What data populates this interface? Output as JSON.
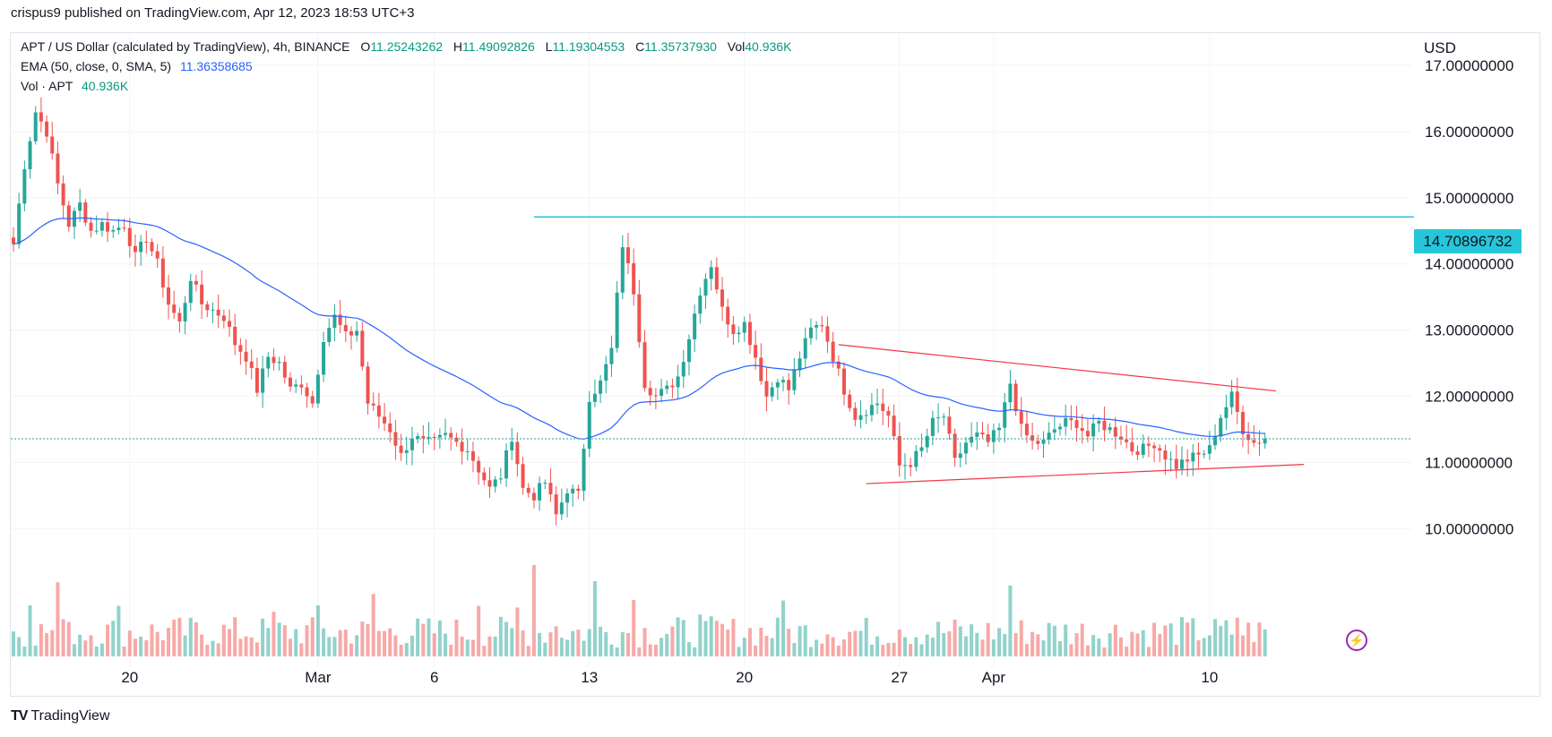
{
  "header": {
    "publisher": "crispus9 published on TradingView.com, Apr 12, 2023 18:53 UTC+3"
  },
  "legend": {
    "symbol": "APT / US Dollar (calculated by TradingView), 4h, BINANCE",
    "open_key": "O",
    "open": "11.25243262",
    "high_key": "H",
    "high": "11.49092826",
    "low_key": "L",
    "low": "11.19304553",
    "close_key": "C",
    "close": "11.35737930",
    "vol_key": "Vol",
    "vol": "40.936K",
    "ema_label": "EMA (50, close, 0, SMA, 5)",
    "ema_value": "11.36358685",
    "vol_label": "Vol · APT",
    "vol_value": "40.936K"
  },
  "currency": "USD",
  "resistance_label": "14.70896732",
  "footer": {
    "brand": "TradingView"
  },
  "colors": {
    "up": "#26a69a",
    "down": "#ef5350",
    "ema": "#2962ff",
    "level": "#26c6da",
    "trend": "#f23645"
  },
  "chart_data": {
    "type": "candlestick",
    "symbol": "APT/USD",
    "interval": "4h",
    "y_axis": {
      "min": 9.3,
      "max": 17.4,
      "ticks": [
        10,
        11,
        12,
        13,
        14,
        15,
        16,
        17
      ],
      "tick_labels": [
        "10.00000000",
        "11.00000000",
        "12.00000000",
        "13.00000000",
        "14.00000000",
        "15.00000000",
        "16.00000000",
        "17.00000000"
      ]
    },
    "x_axis": {
      "ticks": [
        {
          "label": "20",
          "bar": 21
        },
        {
          "label": "Mar",
          "bar": 55
        },
        {
          "label": "6",
          "bar": 76
        },
        {
          "label": "13",
          "bar": 104
        },
        {
          "label": "20",
          "bar": 132
        },
        {
          "label": "27",
          "bar": 160
        },
        {
          "label": "Apr",
          "bar": 177
        },
        {
          "label": "10",
          "bar": 216
        }
      ]
    },
    "last_close": 11.357,
    "horizontal_level": {
      "value": 14.709,
      "from_bar": 94
    },
    "trendlines": [
      {
        "from": {
          "bar": 149,
          "value": 12.78
        },
        "to": {
          "bar": 228,
          "value": 12.08
        }
      },
      {
        "from": {
          "bar": 154,
          "value": 10.68
        },
        "to": {
          "bar": 233,
          "value": 10.97
        }
      }
    ],
    "anchors": [
      [
        0,
        14.3
      ],
      [
        2,
        15.5
      ],
      [
        4,
        16.3
      ],
      [
        6,
        16.0
      ],
      [
        8,
        15.2
      ],
      [
        10,
        14.6
      ],
      [
        12,
        14.9
      ],
      [
        14,
        14.5
      ],
      [
        16,
        14.6
      ],
      [
        18,
        14.5
      ],
      [
        20,
        14.6
      ],
      [
        22,
        14.1
      ],
      [
        24,
        14.4
      ],
      [
        26,
        14.0
      ],
      [
        28,
        13.4
      ],
      [
        30,
        13.1
      ],
      [
        32,
        13.8
      ],
      [
        34,
        13.4
      ],
      [
        36,
        13.3
      ],
      [
        38,
        13.2
      ],
      [
        40,
        12.8
      ],
      [
        42,
        12.6
      ],
      [
        44,
        12.1
      ],
      [
        46,
        12.6
      ],
      [
        48,
        12.5
      ],
      [
        50,
        12.1
      ],
      [
        52,
        12.2
      ],
      [
        54,
        11.9
      ],
      [
        56,
        12.9
      ],
      [
        58,
        13.2
      ],
      [
        60,
        12.9
      ],
      [
        62,
        13.0
      ],
      [
        64,
        11.9
      ],
      [
        66,
        11.7
      ],
      [
        68,
        11.5
      ],
      [
        70,
        11.1
      ],
      [
        72,
        11.4
      ],
      [
        74,
        11.3
      ],
      [
        76,
        11.3
      ],
      [
        78,
        11.4
      ],
      [
        80,
        11.3
      ],
      [
        82,
        11.2
      ],
      [
        84,
        10.9
      ],
      [
        86,
        10.6
      ],
      [
        88,
        10.8
      ],
      [
        90,
        11.4
      ],
      [
        92,
        10.6
      ],
      [
        94,
        10.5
      ],
      [
        96,
        10.7
      ],
      [
        98,
        10.2
      ],
      [
        100,
        10.6
      ],
      [
        102,
        10.5
      ],
      [
        104,
        12.0
      ],
      [
        106,
        12.2
      ],
      [
        108,
        12.7
      ],
      [
        110,
        14.3
      ],
      [
        112,
        13.6
      ],
      [
        114,
        12.2
      ],
      [
        116,
        12.0
      ],
      [
        118,
        12.1
      ],
      [
        120,
        12.3
      ],
      [
        122,
        12.9
      ],
      [
        124,
        13.6
      ],
      [
        126,
        14.0
      ],
      [
        128,
        13.3
      ],
      [
        130,
        13.0
      ],
      [
        132,
        13.1
      ],
      [
        134,
        12.6
      ],
      [
        136,
        12.0
      ],
      [
        138,
        12.3
      ],
      [
        140,
        12.1
      ],
      [
        142,
        12.6
      ],
      [
        144,
        13.0
      ],
      [
        146,
        13.1
      ],
      [
        148,
        12.6
      ],
      [
        150,
        12.1
      ],
      [
        152,
        11.7
      ],
      [
        154,
        11.8
      ],
      [
        156,
        11.9
      ],
      [
        158,
        11.7
      ],
      [
        160,
        10.95
      ],
      [
        162,
        11.0
      ],
      [
        164,
        11.2
      ],
      [
        166,
        11.6
      ],
      [
        168,
        11.7
      ],
      [
        170,
        11.0
      ],
      [
        172,
        11.3
      ],
      [
        174,
        11.4
      ],
      [
        176,
        11.3
      ],
      [
        178,
        11.5
      ],
      [
        180,
        12.2
      ],
      [
        182,
        11.5
      ],
      [
        184,
        11.3
      ],
      [
        186,
        11.3
      ],
      [
        188,
        11.5
      ],
      [
        190,
        11.6
      ],
      [
        192,
        11.6
      ],
      [
        194,
        11.4
      ],
      [
        196,
        11.6
      ],
      [
        198,
        11.5
      ],
      [
        200,
        11.4
      ],
      [
        202,
        11.2
      ],
      [
        204,
        11.2
      ],
      [
        206,
        11.3
      ],
      [
        208,
        11.1
      ],
      [
        210,
        10.95
      ],
      [
        212,
        11.05
      ],
      [
        214,
        11.1
      ],
      [
        216,
        11.2
      ],
      [
        218,
        11.7
      ],
      [
        220,
        12.0
      ],
      [
        222,
        11.5
      ],
      [
        224,
        11.3
      ],
      [
        226,
        11.36
      ]
    ],
    "volume_spikes": [
      [
        3,
        9.5
      ],
      [
        8,
        13.8
      ],
      [
        10,
        6.4
      ],
      [
        19,
        9.4
      ],
      [
        47,
        8.3
      ],
      [
        55,
        9.5
      ],
      [
        65,
        11.6
      ],
      [
        84,
        9.4
      ],
      [
        91,
        9.1
      ],
      [
        94,
        17
      ],
      [
        98,
        5.6
      ],
      [
        105,
        14
      ],
      [
        112,
        10.5
      ],
      [
        124,
        7.8
      ],
      [
        139,
        10.4
      ],
      [
        147,
        4.1
      ],
      [
        160,
        5.0
      ],
      [
        180,
        13.2
      ],
      [
        221,
        7.2
      ]
    ]
  }
}
